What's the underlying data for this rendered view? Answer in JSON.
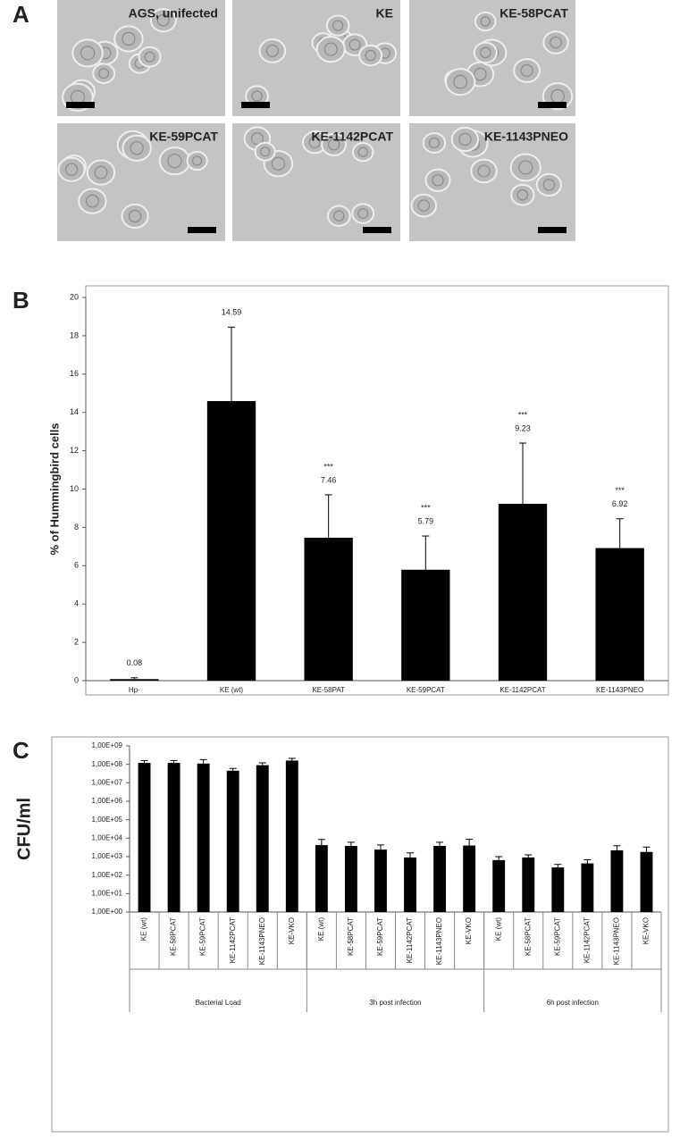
{
  "panel_labels": [
    "A",
    "B",
    "C"
  ],
  "images": [
    {
      "label": "AGS, unifected"
    },
    {
      "label": "KE"
    },
    {
      "label": "KE-58PCAT"
    },
    {
      "label": "KE-59PCAT"
    },
    {
      "label": "KE-1142PCAT"
    },
    {
      "label": "KE-1143PNEO"
    }
  ],
  "chart_data": [
    {
      "type": "bar",
      "y_label": "% of Hummingbird cells",
      "categories": [
        "Hp-",
        "KE (wt)",
        "KE-58PAT",
        "KE-59PCAT",
        "KE-1142PCAT",
        "KE-1143PNEO"
      ],
      "values": [
        0.08,
        14.59,
        7.46,
        5.79,
        9.23,
        6.92
      ],
      "errors": [
        0.07,
        3.86,
        2.24,
        1.76,
        3.17,
        1.53
      ],
      "significance": [
        null,
        null,
        "***",
        "***",
        "***",
        "***"
      ],
      "color": "#000000",
      "ylim": [
        0,
        20
      ],
      "yticks": [
        0,
        2,
        4,
        6,
        8,
        10,
        12,
        14,
        16,
        18,
        20
      ],
      "grid": false
    },
    {
      "type": "bar",
      "y_label": "CFU/ml",
      "log_y": true,
      "categories": [
        "KE (wt)",
        "KE-58PCAT",
        "KE-59PCAT",
        "KE-1142PCAT",
        "KE-1143PNEO",
        "KE-VKO",
        "KE (wt)",
        "KE-58PCAT",
        "KE-59PCAT",
        "KE-1142PCAT",
        "KE-1143PNEO",
        "KE-VKO",
        "KE (wt)",
        "KE-58PCAT",
        "KE-59PCAT",
        "KE-1142PCAT",
        "KE-1143PNEO",
        "KE-VKO"
      ],
      "group_labels": [
        "Bacterial Load",
        "3h post infection",
        "6h post infection"
      ],
      "values": [
        120000000,
        120000000,
        110000000,
        45000000,
        90000000,
        160000000,
        4200,
        3800,
        2400,
        900,
        3800,
        4000,
        650,
        900,
        260,
        430,
        2200,
        1800
      ],
      "errors": [
        40000000,
        40000000,
        70000000,
        15000000,
        30000000,
        50000000,
        4300,
        2200,
        1900,
        700,
        2200,
        4700,
        350,
        350,
        120,
        250,
        1700,
        1500
      ],
      "color": "#000000",
      "ylim": [
        1,
        1000000000
      ],
      "yticks": [
        {
          "value": 1,
          "label": "1,00E+00"
        },
        {
          "value": 10,
          "label": "1,00E+01"
        },
        {
          "value": 100,
          "label": "1,00E+02"
        },
        {
          "value": 1000,
          "label": "1,00E+03"
        },
        {
          "value": 10000,
          "label": "1,00E+04"
        },
        {
          "value": 100000,
          "label": "1,00E+05"
        },
        {
          "value": 1000000,
          "label": "1,00E+06"
        },
        {
          "value": 10000000,
          "label": "1,00E+07"
        },
        {
          "value": 100000000,
          "label": "1,00E+08"
        },
        {
          "value": 1000000000,
          "label": "1,00E+09"
        }
      ],
      "grid": false
    }
  ]
}
